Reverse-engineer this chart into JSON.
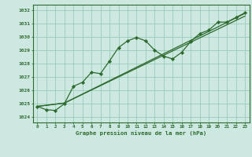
{
  "title": "Graphe pression niveau de la mer (hPa)",
  "background_color": "#cce8e0",
  "grid_color": "#99ccbb",
  "line_color": "#2d6a2d",
  "marker_color": "#2d6a2d",
  "xlim": [
    -0.5,
    23.5
  ],
  "ylim": [
    1023.6,
    1032.4
  ],
  "ytick_values": [
    1024,
    1025,
    1026,
    1027,
    1028,
    1029,
    1030,
    1031,
    1032
  ],
  "xtick_values": [
    0,
    1,
    2,
    3,
    4,
    5,
    6,
    7,
    8,
    9,
    10,
    11,
    12,
    13,
    14,
    15,
    16,
    17,
    18,
    19,
    20,
    21,
    22,
    23
  ],
  "xtick_labels": [
    "0",
    "1",
    "2",
    "3",
    "4",
    "5",
    "6",
    "7",
    "8",
    "9",
    "10",
    "11",
    "12",
    "13",
    "14",
    "15",
    "16",
    "17",
    "18",
    "19",
    "20",
    "21",
    "22",
    "23"
  ],
  "series1_x": [
    0,
    1,
    2,
    3,
    4,
    5,
    6,
    7,
    8,
    9,
    10,
    11,
    12,
    13,
    14,
    15,
    16,
    17,
    18,
    19,
    20,
    21,
    22,
    23
  ],
  "series1_y": [
    1024.8,
    1024.55,
    1024.5,
    1025.0,
    1026.3,
    1026.6,
    1027.35,
    1027.25,
    1028.2,
    1029.2,
    1029.7,
    1029.95,
    1029.7,
    1029.0,
    1028.55,
    1028.35,
    1028.85,
    1029.65,
    1030.25,
    1030.5,
    1031.1,
    1031.1,
    1031.45,
    1031.8
  ],
  "series2_x": [
    0,
    3,
    23
  ],
  "series2_y": [
    1024.8,
    1025.05,
    1031.55
  ],
  "series3_x": [
    0,
    3,
    23
  ],
  "series3_y": [
    1024.8,
    1025.05,
    1031.75
  ]
}
